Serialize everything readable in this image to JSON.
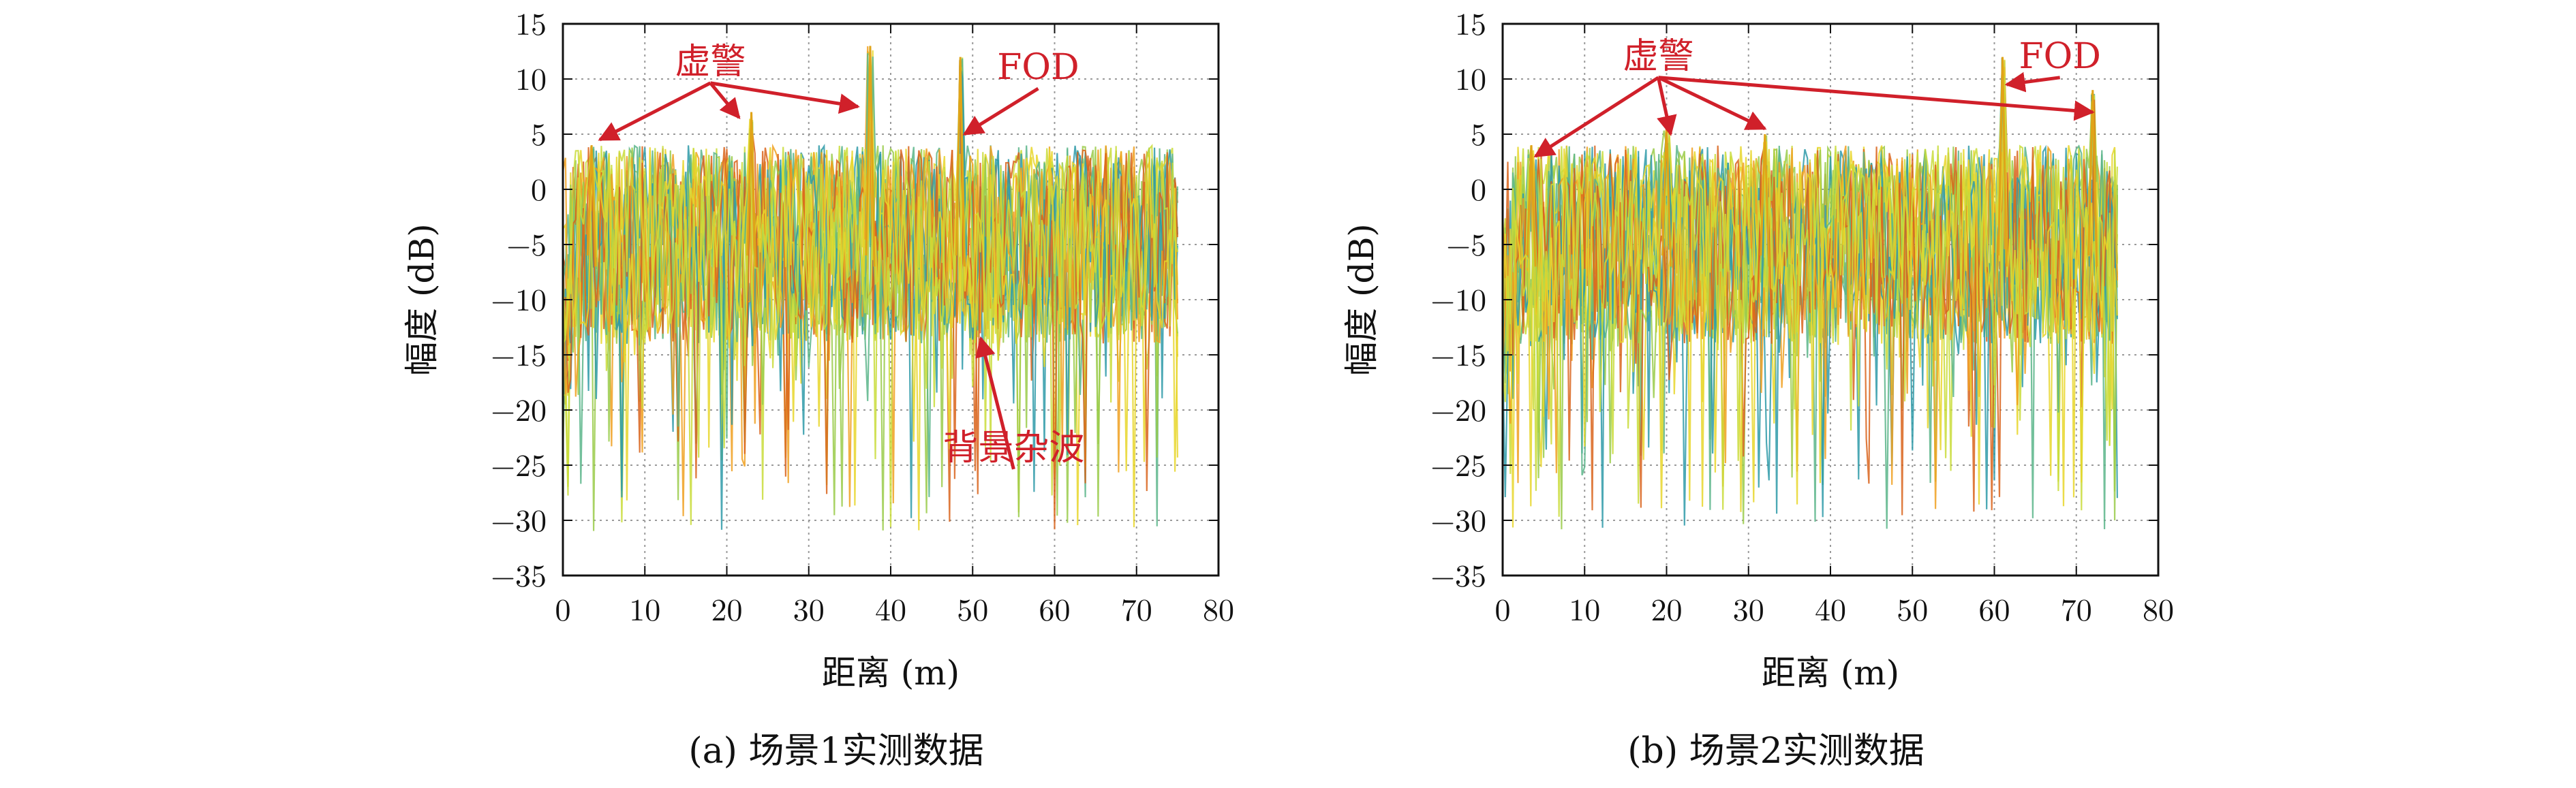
{
  "colors": {
    "annotation": "#d0202a",
    "clutter_palette": [
      "#e8d62a",
      "#c9dc3a",
      "#9acb4a",
      "#5bb58a",
      "#2e9aa8",
      "#f0a020",
      "#d9641c"
    ],
    "grid": "#9a9a9a"
  },
  "chart_data": [
    {
      "type": "line",
      "caption": "(a) 场景1实测数据",
      "xlabel": "距离 (m)",
      "ylabel": "幅度 (dB)",
      "xlim": [
        0,
        80
      ],
      "ylim": [
        -35,
        15
      ],
      "xticks": [
        0,
        10,
        20,
        30,
        40,
        50,
        60,
        70,
        80
      ],
      "yticks": [
        15,
        10,
        5,
        0,
        -5,
        -10,
        -15,
        -20,
        -25,
        -30,
        -35
      ],
      "xtick_labels": [
        "0",
        "10",
        "20",
        "30",
        "40",
        "50",
        "60",
        "70",
        "80"
      ],
      "ytick_labels": [
        "15",
        "10",
        "5",
        "0",
        "−5",
        "−10",
        "−15",
        "−20",
        "−25",
        "−30",
        "−35"
      ],
      "grid": true,
      "data_range": [
        0,
        75
      ],
      "clutter": {
        "baseline_db": -5,
        "spread_db": 9,
        "dip_min_db": -31
      },
      "peaks": [
        {
          "x": 3.5,
          "y": 4
        },
        {
          "x": 23,
          "y": 7
        },
        {
          "x": 37.5,
          "y": 13
        },
        {
          "x": 48.5,
          "y": 12
        }
      ],
      "annotations": [
        {
          "label": "虚警",
          "x": 18,
          "y": 10.5,
          "arrow_targets": [
            [
              4.5,
              4.5
            ],
            [
              21.5,
              6.5
            ],
            [
              36,
              7.5
            ]
          ]
        },
        {
          "label": "FOD",
          "x": 58,
          "y": 10,
          "arrow_targets": [
            [
              49,
              5
            ]
          ]
        },
        {
          "label": "背景杂波",
          "x": 55,
          "y": -24.5,
          "arrow_targets": [
            [
              51,
              -13.5
            ]
          ]
        }
      ]
    },
    {
      "type": "line",
      "caption": "(b) 场景2实测数据",
      "xlabel": "距离 (m)",
      "ylabel": "幅度 (dB)",
      "xlim": [
        0,
        80
      ],
      "ylim": [
        -35,
        15
      ],
      "xticks": [
        0,
        10,
        20,
        30,
        40,
        50,
        60,
        70,
        80
      ],
      "yticks": [
        15,
        10,
        5,
        0,
        -5,
        -10,
        -15,
        -20,
        -25,
        -30,
        -35
      ],
      "xtick_labels": [
        "0",
        "10",
        "20",
        "30",
        "40",
        "50",
        "60",
        "70",
        "80"
      ],
      "ytick_labels": [
        "15",
        "10",
        "5",
        "0",
        "−5",
        "−10",
        "−15",
        "−20",
        "−25",
        "−30",
        "−35"
      ],
      "grid": true,
      "data_range": [
        0,
        75
      ],
      "clutter": {
        "baseline_db": -5,
        "spread_db": 9,
        "dip_min_db": -31
      },
      "peaks": [
        {
          "x": 3.5,
          "y": 4
        },
        {
          "x": 20,
          "y": 6
        },
        {
          "x": 32,
          "y": 5
        },
        {
          "x": 61,
          "y": 12
        },
        {
          "x": 72,
          "y": 9
        }
      ],
      "annotations": [
        {
          "label": "虚警",
          "x": 19,
          "y": 11,
          "arrow_targets": [
            [
              4,
              3
            ],
            [
              20.5,
              5
            ],
            [
              32,
              5.5
            ],
            [
              72,
              7
            ]
          ]
        },
        {
          "label": "FOD",
          "x": 68,
          "y": 11,
          "arrow_targets": [
            [
              61.5,
              9.5
            ]
          ]
        }
      ]
    }
  ]
}
